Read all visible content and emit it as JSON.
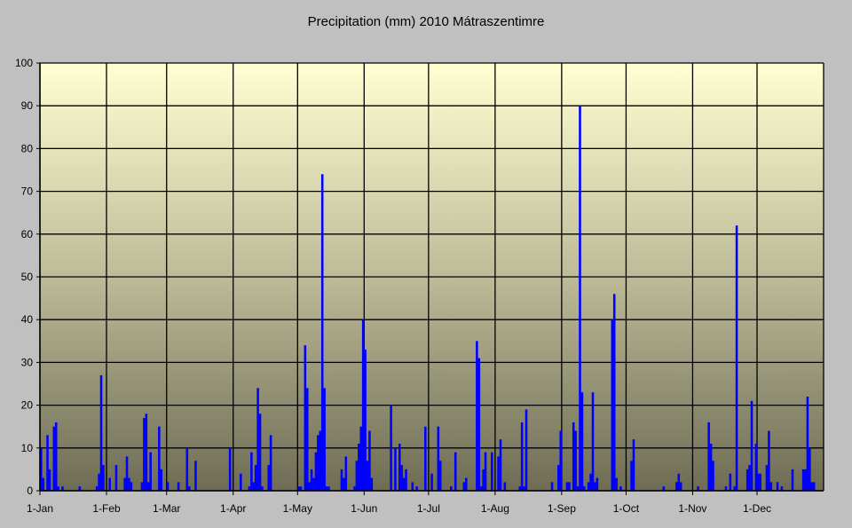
{
  "chart_data": {
    "type": "bar",
    "title": "Precipitation (mm) 2010 Mátraszentimre",
    "xlabel": "",
    "ylabel": "",
    "ylim": [
      0,
      100
    ],
    "yticks": [
      0,
      10,
      20,
      30,
      40,
      50,
      60,
      70,
      80,
      90,
      100
    ],
    "x_unit": "day of year 2010 (1 = 1-Jan)",
    "x_range": [
      1,
      365
    ],
    "xticks": [
      {
        "label": "1-Jan",
        "day": 1
      },
      {
        "label": "1-Feb",
        "day": 32
      },
      {
        "label": "1-Mar",
        "day": 60
      },
      {
        "label": "1-Apr",
        "day": 91
      },
      {
        "label": "1-May",
        "day": 121
      },
      {
        "label": "1-Jun",
        "day": 152
      },
      {
        "label": "1-Jul",
        "day": 182
      },
      {
        "label": "1-Aug",
        "day": 213
      },
      {
        "label": "1-Sep",
        "day": 244
      },
      {
        "label": "1-Oct",
        "day": 274
      },
      {
        "label": "1-Nov",
        "day": 305
      },
      {
        "label": "1-Dec",
        "day": 335
      }
    ],
    "grid": true,
    "bar_color": "#0000ff",
    "days": [
      1,
      2,
      4,
      5,
      7,
      8,
      9,
      11,
      19,
      27,
      28,
      29,
      30,
      33,
      36,
      40,
      41,
      42,
      43,
      48,
      49,
      50,
      51,
      52,
      56,
      57,
      60,
      65,
      69,
      70,
      73,
      89,
      94,
      98,
      99,
      100,
      101,
      102,
      103,
      104,
      107,
      108,
      121,
      122,
      124,
      125,
      126,
      127,
      128,
      129,
      130,
      131,
      132,
      133,
      134,
      135,
      141,
      142,
      143,
      147,
      148,
      149,
      150,
      151,
      152,
      153,
      154,
      155,
      164,
      166,
      168,
      169,
      170,
      171,
      174,
      176,
      180,
      183,
      186,
      187,
      192,
      194,
      198,
      199,
      204,
      205,
      206,
      207,
      208,
      211,
      214,
      215,
      217,
      224,
      225,
      226,
      227,
      239,
      242,
      243,
      246,
      247,
      249,
      250,
      251,
      252,
      253,
      254,
      256,
      257,
      258,
      259,
      260,
      267,
      268,
      269,
      271,
      276,
      277,
      291,
      297,
      298,
      299,
      307,
      312,
      313,
      314,
      320,
      322,
      324,
      325,
      330,
      331,
      332,
      334,
      335,
      336,
      339,
      340,
      341,
      344,
      346,
      351,
      356,
      357,
      358,
      359,
      360,
      361
    ],
    "values": [
      10,
      3,
      13,
      5,
      15,
      16,
      1,
      1,
      1,
      1,
      4,
      27,
      6,
      3,
      6,
      3,
      8,
      3,
      2,
      2,
      17,
      18,
      2,
      9,
      15,
      5,
      2,
      2,
      10,
      1,
      7,
      10,
      4,
      1,
      9,
      2,
      6,
      24,
      18,
      1,
      6,
      13,
      1,
      1,
      34,
      24,
      2,
      5,
      3,
      9,
      13,
      14,
      74,
      24,
      1,
      1,
      5,
      3,
      8,
      1,
      7,
      11,
      15,
      40,
      33,
      7,
      14,
      3,
      20,
      10,
      11,
      6,
      3,
      5,
      2,
      1,
      15,
      4,
      15,
      7,
      1,
      9,
      2,
      3,
      35,
      31,
      1,
      5,
      9,
      9,
      8,
      12,
      2,
      1,
      16,
      1,
      19,
      2,
      6,
      14,
      2,
      2,
      16,
      14,
      1,
      90,
      23,
      1,
      2,
      4,
      23,
      2,
      3,
      40,
      46,
      3,
      1,
      7,
      12,
      1,
      2,
      4,
      2,
      1,
      16,
      11,
      7,
      1,
      4,
      1,
      62,
      5,
      6,
      21,
      11,
      4,
      4,
      6,
      14,
      2,
      2,
      1,
      5,
      5,
      5,
      22,
      10,
      2,
      2
    ]
  }
}
